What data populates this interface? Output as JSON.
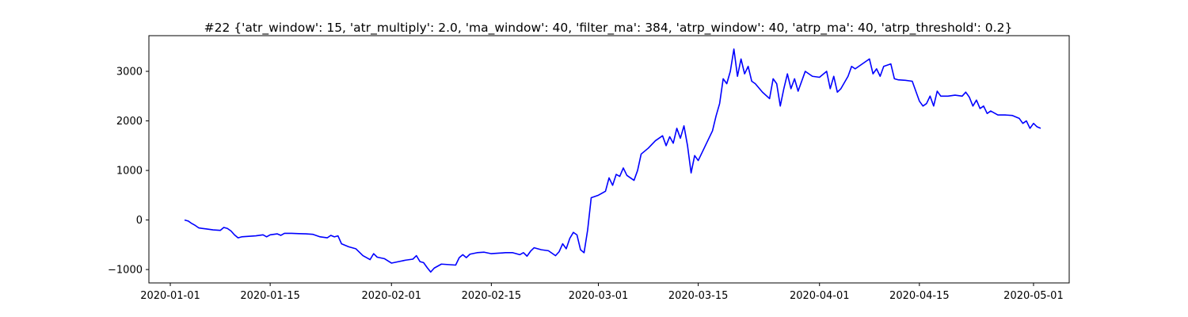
{
  "chart_data": {
    "type": "line",
    "title": "#22 {'atr_window': 15, 'atr_multiply': 2.0, 'ma_window': 40, 'filter_ma': 384, 'atrp_window': 40, 'atrp_ma': 40, 'atrp_threshold': 0.2}",
    "xlabel": "",
    "ylabel": "",
    "x_ticks": [
      "2020-01-01",
      "2020-01-15",
      "2020-02-01",
      "2020-02-15",
      "2020-03-01",
      "2020-03-15",
      "2020-04-01",
      "2020-04-15",
      "2020-05-01"
    ],
    "y_ticks": [
      -1000,
      0,
      1000,
      2000,
      3000
    ],
    "xlim": [
      "2019-12-29",
      "2020-05-06"
    ],
    "ylim": [
      -1270,
      3720
    ],
    "grid": false,
    "series": [
      {
        "color": "#0000ff",
        "points": [
          [
            "2020-01-03",
            0
          ],
          [
            "2020-01-03T12:00",
            -20
          ],
          [
            "2020-01-04",
            -70
          ],
          [
            "2020-01-04T12:00",
            -110
          ],
          [
            "2020-01-05",
            -160
          ],
          [
            "2020-01-06",
            -180
          ],
          [
            "2020-01-07",
            -200
          ],
          [
            "2020-01-08",
            -210
          ],
          [
            "2020-01-08T12:00",
            -150
          ],
          [
            "2020-01-09",
            -170
          ],
          [
            "2020-01-09T12:00",
            -220
          ],
          [
            "2020-01-10",
            -300
          ],
          [
            "2020-01-10T12:00",
            -360
          ],
          [
            "2020-01-11",
            -340
          ],
          [
            "2020-01-12",
            -330
          ],
          [
            "2020-01-13",
            -320
          ],
          [
            "2020-01-14",
            -300
          ],
          [
            "2020-01-14T12:00",
            -340
          ],
          [
            "2020-01-15",
            -300
          ],
          [
            "2020-01-16",
            -280
          ],
          [
            "2020-01-16T12:00",
            -310
          ],
          [
            "2020-01-17",
            -270
          ],
          [
            "2020-01-18",
            -270
          ],
          [
            "2020-01-19",
            -275
          ],
          [
            "2020-01-20",
            -280
          ],
          [
            "2020-01-21",
            -290
          ],
          [
            "2020-01-22",
            -340
          ],
          [
            "2020-01-23",
            -360
          ],
          [
            "2020-01-23T12:00",
            -310
          ],
          [
            "2020-01-24",
            -340
          ],
          [
            "2020-01-24T12:00",
            -320
          ],
          [
            "2020-01-25",
            -480
          ],
          [
            "2020-01-26",
            -540
          ],
          [
            "2020-01-27",
            -580
          ],
          [
            "2020-01-27T12:00",
            -650
          ],
          [
            "2020-01-28",
            -720
          ],
          [
            "2020-01-28T12:00",
            -760
          ],
          [
            "2020-01-29",
            -800
          ],
          [
            "2020-01-29T12:00",
            -680
          ],
          [
            "2020-01-30",
            -750
          ],
          [
            "2020-01-31",
            -780
          ],
          [
            "2020-02-01",
            -870
          ],
          [
            "2020-02-02",
            -840
          ],
          [
            "2020-02-03",
            -810
          ],
          [
            "2020-02-04",
            -790
          ],
          [
            "2020-02-04T12:00",
            -720
          ],
          [
            "2020-02-05",
            -840
          ],
          [
            "2020-02-05T12:00",
            -860
          ],
          [
            "2020-02-06",
            -960
          ],
          [
            "2020-02-06T12:00",
            -1050
          ],
          [
            "2020-02-07",
            -970
          ],
          [
            "2020-02-08",
            -890
          ],
          [
            "2020-02-09",
            -900
          ],
          [
            "2020-02-10",
            -910
          ],
          [
            "2020-02-10T12:00",
            -760
          ],
          [
            "2020-02-11",
            -700
          ],
          [
            "2020-02-11T12:00",
            -760
          ],
          [
            "2020-02-12",
            -690
          ],
          [
            "2020-02-13",
            -660
          ],
          [
            "2020-02-14",
            -650
          ],
          [
            "2020-02-15",
            -680
          ],
          [
            "2020-02-16",
            -670
          ],
          [
            "2020-02-17",
            -660
          ],
          [
            "2020-02-18",
            -660
          ],
          [
            "2020-02-19",
            -700
          ],
          [
            "2020-02-19T12:00",
            -660
          ],
          [
            "2020-02-20",
            -730
          ],
          [
            "2020-02-20T12:00",
            -630
          ],
          [
            "2020-02-21",
            -560
          ],
          [
            "2020-02-22",
            -600
          ],
          [
            "2020-02-23",
            -620
          ],
          [
            "2020-02-24",
            -720
          ],
          [
            "2020-02-24T12:00",
            -640
          ],
          [
            "2020-02-25",
            -480
          ],
          [
            "2020-02-25T12:00",
            -580
          ],
          [
            "2020-02-26",
            -370
          ],
          [
            "2020-02-26T12:00",
            -250
          ],
          [
            "2020-02-27",
            -300
          ],
          [
            "2020-02-27T12:00",
            -600
          ],
          [
            "2020-02-28",
            -660
          ],
          [
            "2020-02-28T12:00",
            -200
          ],
          [
            "2020-02-29",
            450
          ],
          [
            "2020-03-01",
            500
          ],
          [
            "2020-03-02",
            580
          ],
          [
            "2020-03-02T12:00",
            850
          ],
          [
            "2020-03-03",
            700
          ],
          [
            "2020-03-03T12:00",
            920
          ],
          [
            "2020-03-04",
            880
          ],
          [
            "2020-03-04T12:00",
            1050
          ],
          [
            "2020-03-05",
            900
          ],
          [
            "2020-03-06",
            800
          ],
          [
            "2020-03-06T12:00",
            1000
          ],
          [
            "2020-03-07",
            1330
          ],
          [
            "2020-03-08",
            1450
          ],
          [
            "2020-03-09",
            1600
          ],
          [
            "2020-03-10",
            1700
          ],
          [
            "2020-03-10T12:00",
            1500
          ],
          [
            "2020-03-11",
            1680
          ],
          [
            "2020-03-11T12:00",
            1550
          ],
          [
            "2020-03-12",
            1850
          ],
          [
            "2020-03-12T12:00",
            1650
          ],
          [
            "2020-03-13",
            1900
          ],
          [
            "2020-03-13T12:00",
            1500
          ],
          [
            "2020-03-14",
            950
          ],
          [
            "2020-03-14T12:00",
            1300
          ],
          [
            "2020-03-15",
            1200
          ],
          [
            "2020-03-16",
            1500
          ],
          [
            "2020-03-17",
            1800
          ],
          [
            "2020-03-17T12:00",
            2100
          ],
          [
            "2020-03-18",
            2350
          ],
          [
            "2020-03-18T12:00",
            2850
          ],
          [
            "2020-03-19",
            2750
          ],
          [
            "2020-03-19T12:00",
            3000
          ],
          [
            "2020-03-20",
            3450
          ],
          [
            "2020-03-20T12:00",
            2900
          ],
          [
            "2020-03-21",
            3250
          ],
          [
            "2020-03-21T12:00",
            2950
          ],
          [
            "2020-03-22",
            3100
          ],
          [
            "2020-03-22T12:00",
            2800
          ],
          [
            "2020-03-23",
            2750
          ],
          [
            "2020-03-24",
            2580
          ],
          [
            "2020-03-25",
            2450
          ],
          [
            "2020-03-25T12:00",
            2850
          ],
          [
            "2020-03-26",
            2750
          ],
          [
            "2020-03-26T12:00",
            2300
          ],
          [
            "2020-03-27",
            2650
          ],
          [
            "2020-03-27T12:00",
            2950
          ],
          [
            "2020-03-28",
            2650
          ],
          [
            "2020-03-28T12:00",
            2850
          ],
          [
            "2020-03-29",
            2600
          ],
          [
            "2020-03-30",
            3000
          ],
          [
            "2020-03-31",
            2900
          ],
          [
            "2020-04-01",
            2880
          ],
          [
            "2020-04-02",
            3000
          ],
          [
            "2020-04-02T12:00",
            2650
          ],
          [
            "2020-04-03",
            2900
          ],
          [
            "2020-04-03T12:00",
            2580
          ],
          [
            "2020-04-04",
            2650
          ],
          [
            "2020-04-05",
            2900
          ],
          [
            "2020-04-05T12:00",
            3100
          ],
          [
            "2020-04-06",
            3050
          ],
          [
            "2020-04-07",
            3150
          ],
          [
            "2020-04-08",
            3250
          ],
          [
            "2020-04-08T12:00",
            2950
          ],
          [
            "2020-04-09",
            3050
          ],
          [
            "2020-04-09T12:00",
            2900
          ],
          [
            "2020-04-10",
            3100
          ],
          [
            "2020-04-11",
            3150
          ],
          [
            "2020-04-11T12:00",
            2850
          ],
          [
            "2020-04-12",
            2830
          ],
          [
            "2020-04-13",
            2820
          ],
          [
            "2020-04-14",
            2800
          ],
          [
            "2020-04-14T12:00",
            2600
          ],
          [
            "2020-04-15",
            2400
          ],
          [
            "2020-04-15T12:00",
            2300
          ],
          [
            "2020-04-16",
            2350
          ],
          [
            "2020-04-16T12:00",
            2500
          ],
          [
            "2020-04-17",
            2300
          ],
          [
            "2020-04-17T12:00",
            2600
          ],
          [
            "2020-04-18",
            2500
          ],
          [
            "2020-04-19",
            2500
          ],
          [
            "2020-04-20",
            2520
          ],
          [
            "2020-04-21",
            2500
          ],
          [
            "2020-04-21T12:00",
            2580
          ],
          [
            "2020-04-22",
            2480
          ],
          [
            "2020-04-22T12:00",
            2300
          ],
          [
            "2020-04-23",
            2420
          ],
          [
            "2020-04-23T12:00",
            2250
          ],
          [
            "2020-04-24",
            2300
          ],
          [
            "2020-04-24T12:00",
            2150
          ],
          [
            "2020-04-25",
            2200
          ],
          [
            "2020-04-26",
            2120
          ],
          [
            "2020-04-27",
            2120
          ],
          [
            "2020-04-28",
            2110
          ],
          [
            "2020-04-29",
            2050
          ],
          [
            "2020-04-29T12:00",
            1950
          ],
          [
            "2020-04-30",
            2000
          ],
          [
            "2020-04-30T12:00",
            1850
          ],
          [
            "2020-05-01",
            1950
          ],
          [
            "2020-05-01T12:00",
            1880
          ],
          [
            "2020-05-02",
            1850
          ]
        ]
      }
    ]
  }
}
